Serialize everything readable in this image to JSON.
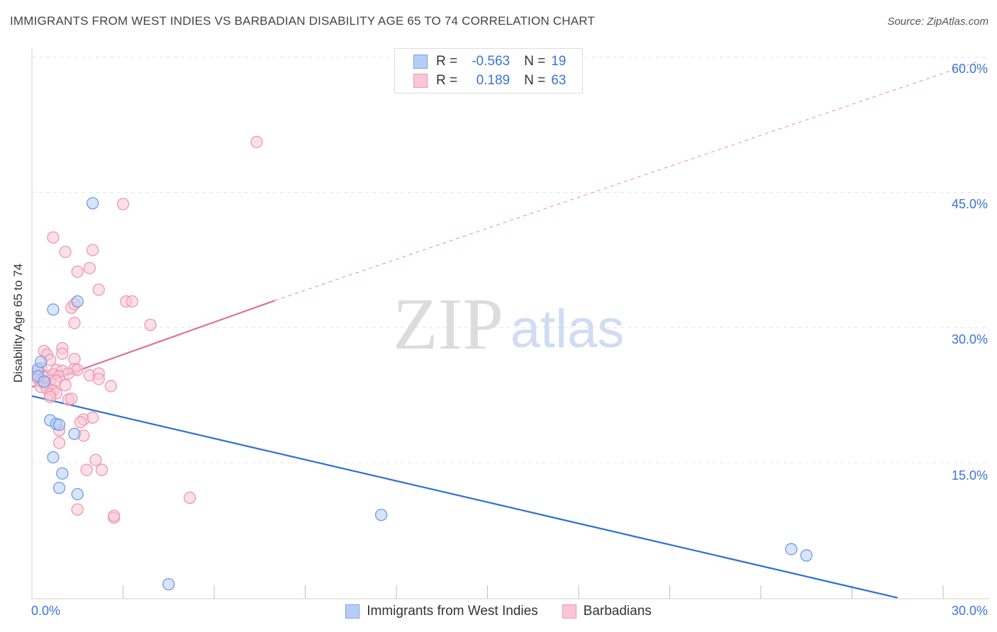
{
  "title": "IMMIGRANTS FROM WEST INDIES VS BARBADIAN DISABILITY AGE 65 TO 74 CORRELATION CHART",
  "source": "Source: ZipAtlas.com",
  "watermark": {
    "zip": "ZIP",
    "atlas": "atlas"
  },
  "colors": {
    "blue_fill": "#b6cdf5",
    "blue_stroke": "#6f9be3",
    "blue_line": "#2f6fd3",
    "pink_fill": "#f8c6d6",
    "pink_stroke": "#ee97b2",
    "pink_line": "#e0709a",
    "tick_text": "#3b74d9",
    "grid": "#e3e3e3"
  },
  "legend": {
    "rows": [
      {
        "r_label": "R =",
        "r_value": "-0.563",
        "n_label": "N =",
        "n_value": "19"
      },
      {
        "r_label": "R =",
        "r_value": "0.189",
        "n_label": "N =",
        "n_value": "63"
      }
    ],
    "series_names": [
      "Immigrants from West Indies",
      "Barbadians"
    ]
  },
  "chart_data": {
    "type": "scatter",
    "title": "IMMIGRANTS FROM WEST INDIES VS BARBADIAN DISABILITY AGE 65 TO 74 CORRELATION CHART",
    "xlabel": "",
    "ylabel": "Disability Age 65 to 74",
    "xlim": [
      0,
      30
    ],
    "ylim": [
      0,
      62
    ],
    "x_tick_labels": [
      {
        "value": 0,
        "label": "0.0%"
      },
      {
        "value": 30,
        "label": "30.0%"
      }
    ],
    "y_tick_labels": [
      {
        "value": 15,
        "label": "15.0%"
      },
      {
        "value": 30,
        "label": "30.0%"
      },
      {
        "value": 45,
        "label": "45.0%"
      },
      {
        "value": 60,
        "label": "60.0%"
      }
    ],
    "x_minor_ticks": [
      3,
      6,
      9,
      12,
      15,
      18,
      21,
      24,
      27,
      30
    ],
    "y_grid": [
      15,
      30,
      45,
      60
    ],
    "series": [
      {
        "name": "Immigrants from West Indies",
        "color": "blue",
        "points": [
          [
            0.2,
            25.4
          ],
          [
            0.3,
            26.2
          ],
          [
            0.2,
            24.6
          ],
          [
            0.4,
            24.0
          ],
          [
            0.6,
            19.7
          ],
          [
            0.8,
            19.3
          ],
          [
            0.9,
            19.2
          ],
          [
            0.7,
            15.6
          ],
          [
            1.0,
            13.8
          ],
          [
            0.9,
            12.2
          ],
          [
            1.4,
            18.2
          ],
          [
            1.5,
            11.5
          ],
          [
            2.0,
            43.8
          ],
          [
            1.5,
            32.9
          ],
          [
            0.7,
            32.0
          ],
          [
            4.5,
            1.5
          ],
          [
            11.5,
            9.2
          ],
          [
            25.0,
            5.4
          ],
          [
            25.5,
            4.7
          ]
        ],
        "trend": {
          "x0": 0,
          "y0": 22.4,
          "x1": 28.5,
          "y1": 0.0,
          "dashed_to_x": null
        }
      },
      {
        "name": "Barbadians",
        "color": "pink",
        "points": [
          [
            7.4,
            50.6
          ],
          [
            3.0,
            43.7
          ],
          [
            0.7,
            40.0
          ],
          [
            1.1,
            38.4
          ],
          [
            2.0,
            38.6
          ],
          [
            1.9,
            36.6
          ],
          [
            1.5,
            36.2
          ],
          [
            2.2,
            34.2
          ],
          [
            1.3,
            32.2
          ],
          [
            3.1,
            32.9
          ],
          [
            3.3,
            32.9
          ],
          [
            1.4,
            32.6
          ],
          [
            1.4,
            30.5
          ],
          [
            3.9,
            30.3
          ],
          [
            0.4,
            27.4
          ],
          [
            0.5,
            27.0
          ],
          [
            1.0,
            27.7
          ],
          [
            1.0,
            27.1
          ],
          [
            0.6,
            26.4
          ],
          [
            1.4,
            26.5
          ],
          [
            0.3,
            25.5
          ],
          [
            0.8,
            25.3
          ],
          [
            1.0,
            25.2
          ],
          [
            1.4,
            25.4
          ],
          [
            1.5,
            25.3
          ],
          [
            0.2,
            25.1
          ],
          [
            0.3,
            24.8
          ],
          [
            0.5,
            24.6
          ],
          [
            0.7,
            24.8
          ],
          [
            0.9,
            24.6
          ],
          [
            1.2,
            24.9
          ],
          [
            1.9,
            24.7
          ],
          [
            2.2,
            24.9
          ],
          [
            0.2,
            24.3
          ],
          [
            0.3,
            24.0
          ],
          [
            0.4,
            23.8
          ],
          [
            0.6,
            24.1
          ],
          [
            0.8,
            24.1
          ],
          [
            2.2,
            24.3
          ],
          [
            0.3,
            23.4
          ],
          [
            0.5,
            23.2
          ],
          [
            0.7,
            23.0
          ],
          [
            0.6,
            22.6
          ],
          [
            0.8,
            22.7
          ],
          [
            2.6,
            23.5
          ],
          [
            0.6,
            22.3
          ],
          [
            1.2,
            22.0
          ],
          [
            1.3,
            22.1
          ],
          [
            1.7,
            19.8
          ],
          [
            1.6,
            19.5
          ],
          [
            2.0,
            20.0
          ],
          [
            0.9,
            18.6
          ],
          [
            1.7,
            18.0
          ],
          [
            0.9,
            17.2
          ],
          [
            2.1,
            15.3
          ],
          [
            1.8,
            14.2
          ],
          [
            2.3,
            14.2
          ],
          [
            5.2,
            11.1
          ],
          [
            1.5,
            9.8
          ],
          [
            2.7,
            8.9
          ],
          [
            2.7,
            9.1
          ],
          [
            0.4,
            24.5
          ],
          [
            1.1,
            23.6
          ]
        ],
        "trend": {
          "x0": 0,
          "y0": 23.4,
          "x1": 8.0,
          "y1": 33.0,
          "dashed_to_x": 30,
          "dashed_y_end": 59.5
        }
      }
    ]
  }
}
